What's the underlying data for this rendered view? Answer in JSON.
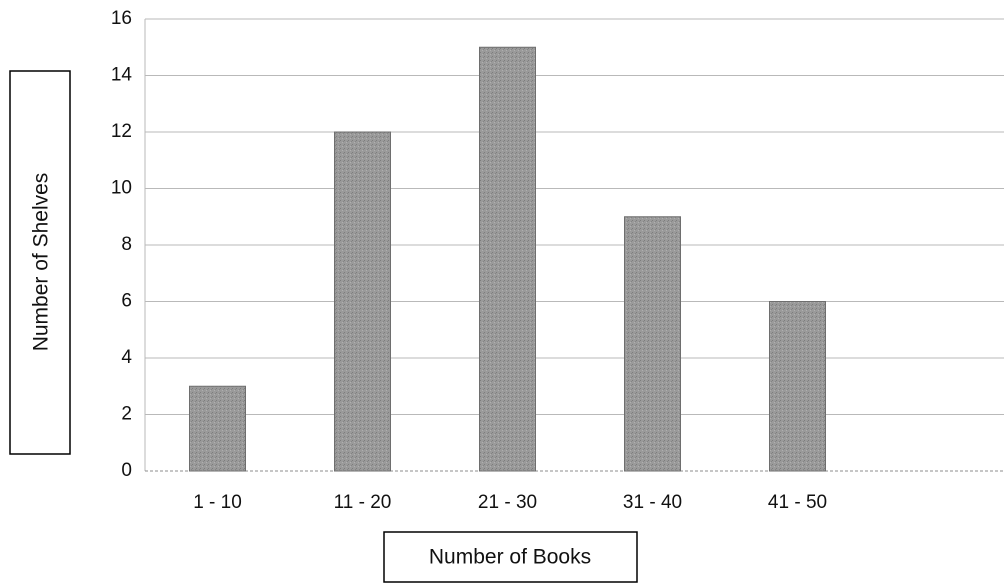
{
  "chart_data": {
    "type": "bar",
    "categories": [
      "1 - 10",
      "11 - 20",
      "21 - 30",
      "31 - 40",
      "41 - 50"
    ],
    "values": [
      3,
      12,
      15,
      9,
      6
    ],
    "title": "",
    "xlabel": "Number of Books",
    "ylabel": "Number of Shelves",
    "ylim": [
      0,
      16
    ],
    "yticks": [
      0,
      2,
      4,
      6,
      8,
      10,
      12,
      14,
      16
    ],
    "grid": true,
    "bar_color": "#8f8f8f"
  }
}
